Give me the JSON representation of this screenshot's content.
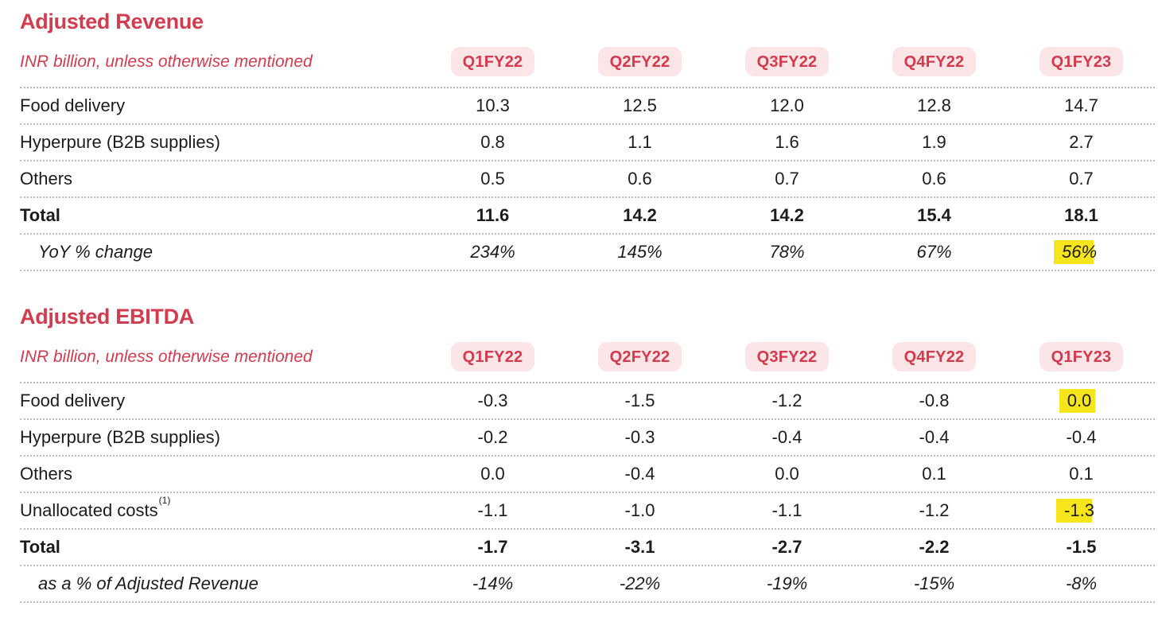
{
  "colors": {
    "accent_red": "#d33b4f",
    "badge_background": "#fbe5e7",
    "highlight_yellow": "#f6e51b",
    "text": "#1c1c1c",
    "dotted_rule": "#bdbdbd"
  },
  "tables": [
    {
      "title": "Adjusted Revenue",
      "subtitle": "INR billion, unless otherwise mentioned",
      "columns": [
        "Q1FY22",
        "Q2FY22",
        "Q3FY22",
        "Q4FY22",
        "Q1FY23"
      ],
      "rows": [
        {
          "label": "Food delivery",
          "values": [
            "10.3",
            "12.5",
            "12.0",
            "12.8",
            "14.7"
          ]
        },
        {
          "label": "Hyperpure (B2B supplies)",
          "values": [
            "0.8",
            "1.1",
            "1.6",
            "1.9",
            "2.7"
          ]
        },
        {
          "label": "Others",
          "values": [
            "0.5",
            "0.6",
            "0.7",
            "0.6",
            "0.7"
          ]
        },
        {
          "label": "Total",
          "style": "bold",
          "values": [
            "11.6",
            "14.2",
            "14.2",
            "15.4",
            "18.1"
          ]
        },
        {
          "label": "YoY % change",
          "style": "italic-indented",
          "values": [
            "234%",
            "145%",
            "78%",
            "67%",
            "56%"
          ],
          "highlighted_column": "Q1FY23"
        }
      ]
    },
    {
      "title": "Adjusted EBITDA",
      "subtitle": "INR billion, unless otherwise mentioned",
      "columns": [
        "Q1FY22",
        "Q2FY22",
        "Q3FY22",
        "Q4FY22",
        "Q1FY23"
      ],
      "rows": [
        {
          "label": "Food delivery",
          "values": [
            "-0.3",
            "-1.5",
            "-1.2",
            "-0.8",
            "0.0"
          ],
          "highlighted_column": "Q1FY23"
        },
        {
          "label": "Hyperpure (B2B supplies)",
          "values": [
            "-0.2",
            "-0.3",
            "-0.4",
            "-0.4",
            "-0.4"
          ]
        },
        {
          "label": "Others",
          "values": [
            "0.0",
            "-0.4",
            "0.0",
            "0.1",
            "0.1"
          ]
        },
        {
          "label": "Unallocated costs",
          "footnote": "(1)",
          "values": [
            "-1.1",
            "-1.0",
            "-1.1",
            "-1.2",
            "-1.3"
          ],
          "highlighted_column": "Q1FY23"
        },
        {
          "label": "Total",
          "style": "bold",
          "values": [
            "-1.7",
            "-3.1",
            "-2.7",
            "-2.2",
            "-1.5"
          ]
        },
        {
          "label": "as a % of Adjusted Revenue",
          "style": "italic-indented",
          "values": [
            "-14%",
            "-22%",
            "-19%",
            "-15%",
            "-8%"
          ]
        }
      ]
    }
  ]
}
